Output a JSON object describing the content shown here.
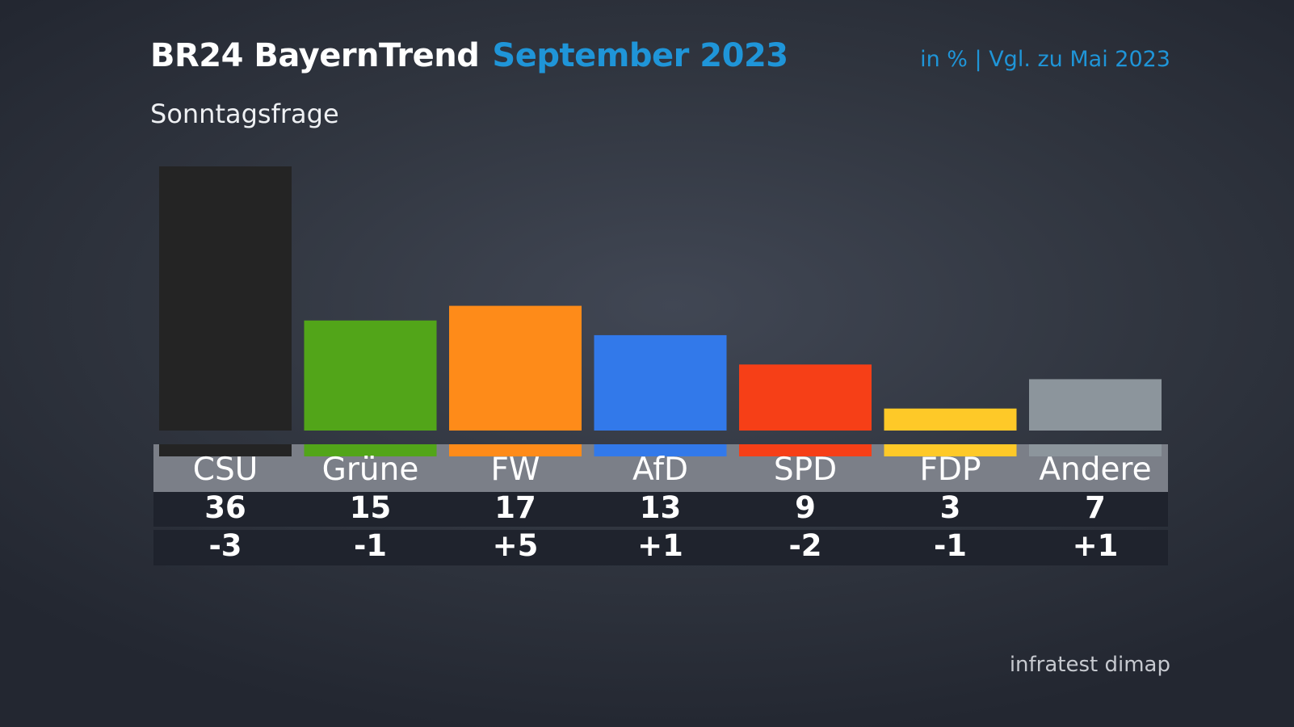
{
  "header": {
    "title": "BR24 BayernTrend",
    "title_accent": "September 2023",
    "subtitle": "Sonntagsfrage",
    "unit_note": "in % | Vgl. zu Mai 2023"
  },
  "footer": {
    "source": "infratest dimap"
  },
  "chart_data": {
    "type": "bar",
    "title": "BR24 BayernTrend September 2023",
    "subtitle": "Sonntagsfrage",
    "categories": [
      "CSU",
      "Grüne",
      "FW",
      "AfD",
      "SPD",
      "FDP",
      "Andere"
    ],
    "values": [
      36,
      15,
      17,
      13,
      9,
      3,
      7
    ],
    "changes": [
      "-3",
      "-1",
      "+5",
      "+1",
      "-2",
      "-1",
      "+1"
    ],
    "values_text": [
      "36",
      "15",
      "17",
      "13",
      "9",
      "3",
      "7"
    ],
    "colors": [
      "#242424",
      "#52a519",
      "#fe8b19",
      "#3279ea",
      "#f63f17",
      "#fec928",
      "#8c959c"
    ],
    "ylim": [
      0,
      36
    ],
    "grid": false,
    "xlabel": "",
    "ylabel": ""
  }
}
